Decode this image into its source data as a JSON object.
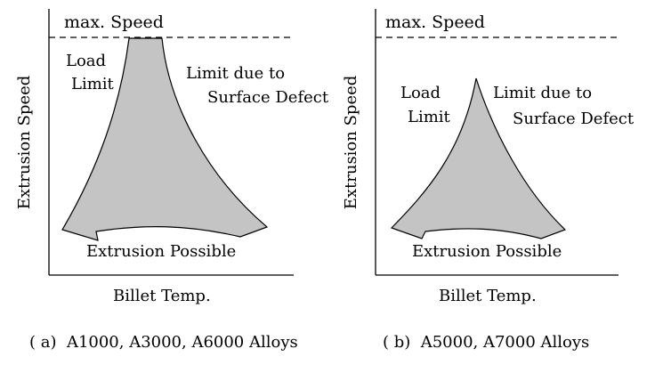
{
  "panel_a": {
    "max_speed": "max. Speed",
    "load_limit": [
      "Load",
      "Limit"
    ],
    "surface_limit": [
      "Limit due to",
      "Surface Defect"
    ],
    "region_label": "Extrusion Possible",
    "x_axis": "Billet Temp.",
    "y_axis": "Extrusion Speed",
    "caption": "( a)  A1000, A3000, A6000 Alloys"
  },
  "panel_b": {
    "max_speed": "max. Speed",
    "load_limit": [
      "Load",
      "Limit"
    ],
    "surface_limit": [
      "Limit due to",
      "Surface Defect"
    ],
    "region_label": "Extrusion Possible",
    "x_axis": "Billet Temp.",
    "y_axis": "Extrusion Speed",
    "caption": "( b)  A5000, A7000 Alloys"
  },
  "colors": {
    "region_fill": "#c4c4c4",
    "line": "#000000"
  }
}
